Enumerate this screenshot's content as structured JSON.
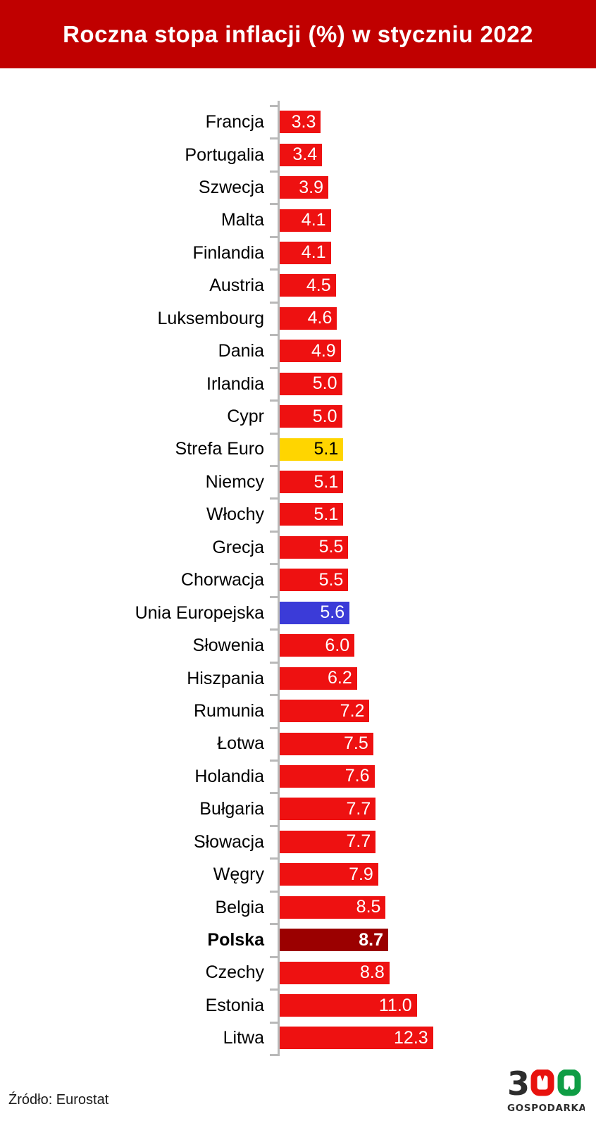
{
  "title": "Roczna stopa inflacji (%) w styczniu 2022",
  "source": "Źródło: Eurostat",
  "logo": {
    "text": "300",
    "digit_three": "3",
    "subtext": "GOSPODARKA"
  },
  "colors": {
    "banner": "#c00000",
    "bar_default": "#ee1111",
    "bar_eurozone": "#ffd500",
    "bar_eu": "#3b3bd8",
    "bar_poland": "#9b0000",
    "axis": "#b9b9b9",
    "value_text": "#ffffff",
    "value_text_on_yellow": "#000000",
    "label_text": "#000000",
    "logo_dark": "#2d2d2d",
    "logo_red": "#e8120e",
    "logo_green": "#0f9d45"
  },
  "chart_data": {
    "type": "bar",
    "orientation": "horizontal",
    "title": "Roczna stopa inflacji (%) w styczniu 2022",
    "categories": [
      "Francja",
      "Portugalia",
      "Szwecja",
      "Malta",
      "Finlandia",
      "Austria",
      "Luksembourg",
      "Dania",
      "Irlandia",
      "Cypr",
      "Strefa Euro",
      "Niemcy",
      "Włochy",
      "Grecja",
      "Chorwacja",
      "Unia Europejska",
      "Słowenia",
      "Hiszpania",
      "Rumunia",
      "Łotwa",
      "Holandia",
      "Bułgaria",
      "Słowacja",
      "Węgry",
      "Belgia",
      "Polska",
      "Czechy",
      "Estonia",
      "Litwa"
    ],
    "values": [
      3.3,
      3.4,
      3.9,
      4.1,
      4.1,
      4.5,
      4.6,
      4.9,
      5.0,
      5.0,
      5.1,
      5.1,
      5.1,
      5.5,
      5.5,
      5.6,
      6.0,
      6.2,
      7.2,
      7.5,
      7.6,
      7.7,
      7.7,
      7.9,
      8.5,
      8.7,
      8.8,
      11.0,
      12.3
    ],
    "styles": [
      "default",
      "default",
      "default",
      "default",
      "default",
      "default",
      "default",
      "default",
      "default",
      "default",
      "eurozone",
      "default",
      "default",
      "default",
      "default",
      "eu",
      "default",
      "default",
      "default",
      "default",
      "default",
      "default",
      "default",
      "default",
      "default",
      "poland",
      "default",
      "default",
      "default"
    ],
    "value_label_format": "one-decimal",
    "xlim": [
      0,
      12.6
    ],
    "grid": false,
    "legend": false,
    "highlights": {
      "Strefa Euro": "yellow bar, black value label",
      "Unia Europejska": "blue bar, white value label",
      "Polska": "dark red bar, bold label and bold white value"
    }
  }
}
